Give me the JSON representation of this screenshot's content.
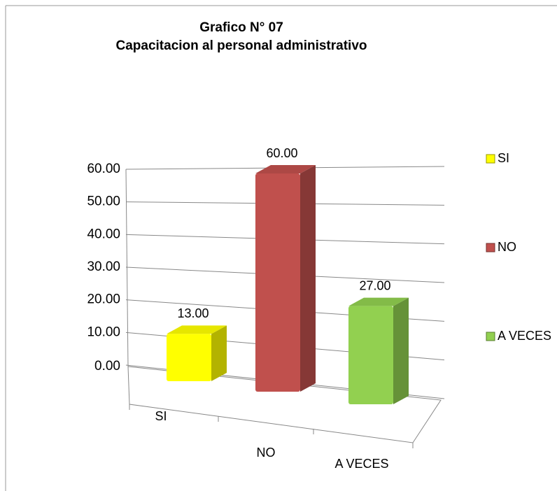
{
  "chart_data": {
    "type": "bar3d",
    "title": [
      "Grafico N° 07",
      "Capacitacion al personal administrativo"
    ],
    "categories": [
      "SI",
      "NO",
      "A VECES"
    ],
    "values": [
      13,
      60,
      27
    ],
    "value_labels": [
      "13.00",
      "60.00",
      "27.00"
    ],
    "colors": [
      "#ffff00",
      "#c0504d",
      "#92d050"
    ],
    "ylim": [
      0,
      60
    ],
    "yticks": [
      {
        "value": 0,
        "label": "0.00"
      },
      {
        "value": 10,
        "label": "10.00"
      },
      {
        "value": 20,
        "label": "20.00"
      },
      {
        "value": 30,
        "label": "30.00"
      },
      {
        "value": 40,
        "label": "40.00"
      },
      {
        "value": 50,
        "label": "50.00"
      },
      {
        "value": 60,
        "label": "60.00"
      }
    ],
    "grid": true,
    "legend": "right"
  }
}
